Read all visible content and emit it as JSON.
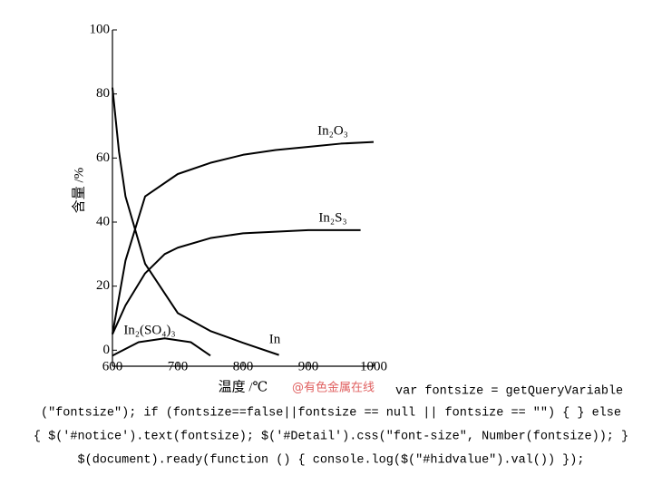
{
  "chart_data": {
    "type": "line",
    "xlabel": "温度 /℃",
    "ylabel": "含量 /%",
    "xlim": [
      600,
      1000
    ],
    "ylim": [
      -5,
      100
    ],
    "xticks": [
      600,
      700,
      800,
      900,
      1000
    ],
    "yticks": [
      0,
      20,
      40,
      60,
      80,
      100
    ],
    "series": [
      {
        "name": "In₂O₃",
        "color": "#000000",
        "x": [
          600,
          620,
          650,
          700,
          750,
          800,
          850,
          900,
          950,
          1000
        ],
        "values": [
          5,
          28,
          48,
          55,
          58.5,
          61,
          62.5,
          63.5,
          64.5,
          65
        ]
      },
      {
        "name": "In₂S₃",
        "color": "#000000",
        "x": [
          600,
          620,
          650,
          680,
          700,
          750,
          800,
          900,
          980
        ],
        "values": [
          5,
          14,
          24,
          30,
          32,
          35,
          36.5,
          37.5,
          37.5
        ]
      },
      {
        "name": "In",
        "color": "#000000",
        "x": [
          600,
          610,
          620,
          650,
          700,
          750,
          800,
          855
        ],
        "values": [
          82,
          62,
          48,
          27,
          11.6,
          6,
          2.3,
          -1.5
        ]
      },
      {
        "name": "In₂(SO₄)₃",
        "color": "#000000",
        "x": [
          600,
          640,
          680,
          720,
          750
        ],
        "values": [
          -1.7,
          2.5,
          3.7,
          2.5,
          -1.7
        ]
      }
    ]
  },
  "watermark": "@有色金属在线",
  "code_lines": [
    "var fontsize = getQueryVariable",
    "(\"fontsize\"); if (fontsize==false||fontsize == null || fontsize == \"\") { } else",
    "{ $('#notice').text(fontsize); $('#Detail').css(\"font-size\", Number(fontsize)); }",
    "$(document).ready(function () { console.log($(\"#hidvalue\").val()) });"
  ]
}
